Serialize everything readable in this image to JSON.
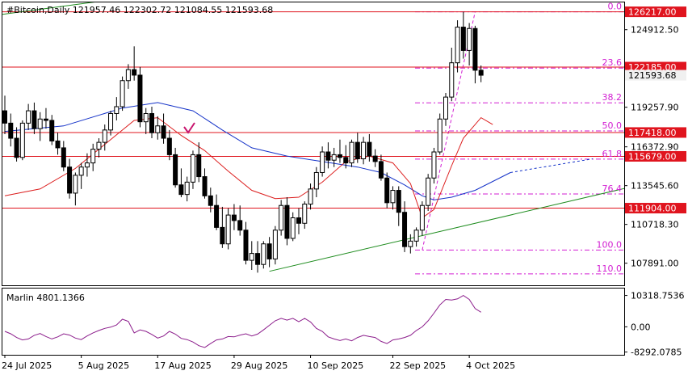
{
  "header": {
    "title": "#Bitcoin,Daily  121957.46 122302.72 121084.55 121593.68"
  },
  "subwindow": {
    "title": "Marlin 4801.1366"
  },
  "price_scale": {
    "labels": [
      {
        "text": "124912.50",
        "price": 124912.5
      },
      {
        "text": "119257.90",
        "price": 119257.9
      },
      {
        "text": "116372.90",
        "price": 116372.9
      },
      {
        "text": "113545.60",
        "price": 113545.6
      },
      {
        "text": "110718.30",
        "price": 110718.3
      },
      {
        "text": "107891.00",
        "price": 107891.0
      }
    ],
    "range": [
      106280,
      126900
    ]
  },
  "level_badges": [
    {
      "text": "126217.00",
      "price": 126217,
      "color": "#e0141e"
    },
    {
      "text": "122185.00",
      "price": 122185,
      "color": "#e0141e"
    },
    {
      "text": "121593.68",
      "price": 121593.68,
      "color": "#f0f0f0"
    },
    {
      "text": "117418.00",
      "price": 117418,
      "color": "#e0141e"
    },
    {
      "text": "115679.00",
      "price": 115679,
      "color": "#e0141e"
    },
    {
      "text": "111904.00",
      "price": 111904,
      "color": "#e0141e"
    }
  ],
  "fib_levels": [
    {
      "text": "0.0",
      "price": 126217
    },
    {
      "text": "23.6",
      "price": 122115
    },
    {
      "text": "38.2",
      "price": 119580
    },
    {
      "text": "50.0",
      "price": 117530
    },
    {
      "text": "61.8",
      "price": 115480
    },
    {
      "text": "76.4",
      "price": 112940
    },
    {
      "text": "100.0",
      "price": 108850
    },
    {
      "text": "110.0",
      "price": 107110
    }
  ],
  "indicator_scale": {
    "labels": [
      {
        "text": "10318.7536",
        "value": 10318.7536
      },
      {
        "text": "0.00",
        "value": 0
      },
      {
        "text": "-8292.0785",
        "value": -8292.0785
      }
    ],
    "range": [
      -9200,
      12600
    ]
  },
  "time_axis": {
    "labels": [
      "24 Jul 2025",
      "5 Aug 2025",
      "17 Aug 2025",
      "29 Aug 2025",
      "10 Sep 2025",
      "22 Sep 2025",
      "4 Oct 2025"
    ]
  },
  "colors": {
    "bull": "#ffffff",
    "bear": "#000000",
    "level_line": "#e0141e",
    "fib": "#d21ed2",
    "ma_blue": "#1432c8",
    "ma_red": "#dc1e1e",
    "trendline": "#1e8c1e",
    "oscillator": "#8c1e8c",
    "checkmark": "#c8146e"
  },
  "chart_data": {
    "type": "candlestick",
    "symbol": "#Bitcoin",
    "timeframe": "Daily",
    "ohlc_readout": {
      "open": 121957.46,
      "high": 122302.72,
      "low": 121084.55,
      "close": 121593.68
    },
    "candles": [
      [
        119000,
        120100,
        117300,
        118100
      ],
      [
        118100,
        118800,
        116400,
        117000
      ],
      [
        117000,
        117800,
        115300,
        115600
      ],
      [
        115600,
        118300,
        115400,
        118100
      ],
      [
        118100,
        119500,
        117600,
        119000
      ],
      [
        119000,
        119600,
        117300,
        117700
      ],
      [
        117700,
        118900,
        116800,
        118400
      ],
      [
        118400,
        119200,
        117700,
        118300
      ],
      [
        118300,
        118700,
        116500,
        116800
      ],
      [
        116800,
        117400,
        115800,
        116300
      ],
      [
        116300,
        116800,
        114600,
        114900
      ],
      [
        114900,
        115500,
        112600,
        113000
      ],
      [
        113000,
        114500,
        112100,
        114300
      ],
      [
        114300,
        115200,
        113300,
        114900
      ],
      [
        114900,
        115900,
        114200,
        115200
      ],
      [
        115200,
        116600,
        114600,
        116200
      ],
      [
        116200,
        117000,
        115600,
        116700
      ],
      [
        116700,
        118000,
        116100,
        117600
      ],
      [
        117600,
        119000,
        117200,
        118800
      ],
      [
        118800,
        120000,
        118300,
        119300
      ],
      [
        119300,
        121500,
        119000,
        121200
      ],
      [
        121200,
        122400,
        120600,
        122000
      ],
      [
        122000,
        123700,
        121200,
        121600
      ],
      [
        121600,
        122200,
        117800,
        118200
      ],
      [
        118200,
        119200,
        117300,
        118800
      ],
      [
        118800,
        119300,
        117000,
        117400
      ],
      [
        117400,
        118600,
        116900,
        117900
      ],
      [
        117900,
        118800,
        116600,
        117000
      ],
      [
        117000,
        117600,
        115400,
        115800
      ],
      [
        115800,
        116300,
        113400,
        113600
      ],
      [
        113600,
        114800,
        112700,
        112900
      ],
      [
        112900,
        114200,
        112400,
        113800
      ],
      [
        113800,
        116100,
        113300,
        115800
      ],
      [
        115800,
        116700,
        113800,
        114200
      ],
      [
        114200,
        114800,
        112600,
        112800
      ],
      [
        112800,
        113400,
        111600,
        112100
      ],
      [
        112100,
        112900,
        110300,
        110500
      ],
      [
        110500,
        112000,
        109000,
        109300
      ],
      [
        109300,
        111900,
        108900,
        111400
      ],
      [
        111400,
        112200,
        110300,
        111000
      ],
      [
        111000,
        112100,
        109900,
        110300
      ],
      [
        110300,
        110900,
        107800,
        108100
      ],
      [
        108100,
        109500,
        107400,
        108600
      ],
      [
        108600,
        109500,
        107200,
        107800
      ],
      [
        107800,
        109500,
        107500,
        109300
      ],
      [
        109300,
        109800,
        107600,
        108200
      ],
      [
        108200,
        110600,
        107800,
        110300
      ],
      [
        110300,
        112500,
        109900,
        112100
      ],
      [
        112100,
        112700,
        109200,
        109700
      ],
      [
        109700,
        111600,
        109500,
        111200
      ],
      [
        111200,
        111900,
        110000,
        110800
      ],
      [
        110800,
        112400,
        110400,
        112200
      ],
      [
        112200,
        113700,
        111800,
        113300
      ],
      [
        113300,
        114900,
        112700,
        114500
      ],
      [
        114500,
        116400,
        114200,
        116000
      ],
      [
        116000,
        116700,
        114800,
        115400
      ],
      [
        115400,
        116300,
        114900,
        115800
      ],
      [
        115800,
        116900,
        115200,
        115600
      ],
      [
        115600,
        116500,
        114800,
        115200
      ],
      [
        115200,
        116900,
        114900,
        116700
      ],
      [
        116700,
        117400,
        115200,
        115500
      ],
      [
        115500,
        117100,
        115100,
        116700
      ],
      [
        116700,
        117300,
        115300,
        115700
      ],
      [
        115700,
        116200,
        114900,
        115300
      ],
      [
        115300,
        115800,
        113900,
        114100
      ],
      [
        114100,
        114500,
        111900,
        112300
      ],
      [
        112300,
        113500,
        111800,
        113200
      ],
      [
        113200,
        113500,
        110600,
        111600
      ],
      [
        111600,
        112400,
        108700,
        109100
      ],
      [
        109100,
        110000,
        108600,
        109500
      ],
      [
        109500,
        110500,
        109100,
        110300
      ],
      [
        110300,
        112400,
        109900,
        112100
      ],
      [
        112100,
        114400,
        111700,
        114100
      ],
      [
        114100,
        116300,
        113700,
        116000
      ],
      [
        116000,
        118800,
        115800,
        118400
      ],
      [
        118400,
        120300,
        117900,
        120000
      ],
      [
        120000,
        123600,
        119700,
        122500
      ],
      [
        122500,
        125600,
        121800,
        125100
      ],
      [
        125100,
        126217,
        122800,
        123400
      ],
      [
        123400,
        125400,
        122300,
        125000
      ],
      [
        125000,
        125200,
        121000,
        121957
      ],
      [
        121957,
        122303,
        121085,
        121594
      ]
    ],
    "ma_blue": [
      [
        0,
        117500
      ],
      [
        10,
        117900
      ],
      [
        20,
        119200
      ],
      [
        26,
        119600
      ],
      [
        32,
        119000
      ],
      [
        37,
        117600
      ],
      [
        42,
        116300
      ],
      [
        48,
        115700
      ],
      [
        54,
        115300
      ],
      [
        60,
        114900
      ],
      [
        64,
        114500
      ],
      [
        68,
        113600
      ],
      [
        71,
        112800
      ],
      [
        73,
        112500
      ],
      [
        76,
        112700
      ],
      [
        80,
        113200
      ],
      [
        86,
        114500
      ]
    ],
    "ma_red": [
      [
        0,
        112800
      ],
      [
        6,
        113300
      ],
      [
        12,
        114800
      ],
      [
        18,
        116900
      ],
      [
        22,
        118300
      ],
      [
        26,
        118500
      ],
      [
        30,
        117200
      ],
      [
        34,
        116100
      ],
      [
        38,
        114600
      ],
      [
        42,
        113200
      ],
      [
        46,
        112600
      ],
      [
        50,
        112700
      ],
      [
        54,
        113800
      ],
      [
        58,
        115300
      ],
      [
        62,
        115700
      ],
      [
        66,
        115200
      ],
      [
        69,
        113700
      ],
      [
        71,
        111200
      ],
      [
        73,
        111800
      ],
      [
        76,
        115000
      ],
      [
        78,
        117000
      ],
      [
        81,
        118500
      ],
      [
        83,
        118000
      ]
    ],
    "trendlines": [
      {
        "points": [
          [
            -1,
            126000
          ],
          [
            20,
            127200
          ]
        ]
      },
      {
        "points": [
          [
            45,
            107300
          ],
          [
            86,
            111400
          ]
        ]
      }
    ],
    "oscillator": {
      "name": "Marlin",
      "last": 4801.1366,
      "values": [
        -1500,
        -2300,
        -3500,
        -4300,
        -4000,
        -2800,
        -2200,
        -3200,
        -4000,
        -3300,
        -2300,
        -2700,
        -3700,
        -4200,
        -3000,
        -2000,
        -1200,
        -500,
        -100,
        600,
        2500,
        1800,
        -2000,
        -1000,
        -1500,
        -2500,
        -3700,
        -3000,
        -1500,
        -2400,
        -3800,
        -4200,
        -5000,
        -6200,
        -6800,
        -5500,
        -4300,
        -4000,
        -3200,
        -3300,
        -2700,
        -2300,
        -3000,
        -2400,
        -1000,
        500,
        2000,
        2800,
        2200,
        2800,
        1700,
        2800,
        1600,
        -500,
        -1500,
        -3300,
        -4000,
        -4500,
        -4000,
        -4600,
        -3500,
        -2800,
        -3200,
        -3500,
        -4800,
        -5500,
        -4300,
        -4000,
        -3500,
        -2800,
        -1200,
        0,
        2000,
        4500,
        7200,
        9000,
        8800,
        9200,
        10318.75,
        9000,
        6000,
        4801.14
      ]
    }
  }
}
